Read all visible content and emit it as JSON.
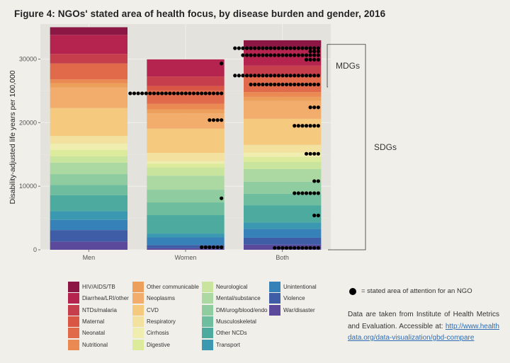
{
  "title": "Figure 4: NGOs' stated area of health focus, by disease burden and gender, 2016",
  "note": "= stated area of attention for an NGO",
  "source_text": "Data are taken from Institute of Health Metrics and Evaluation. Accessible at:",
  "source_link": "http://www.healthdata.org/data-visualization/gbd-compare",
  "chart_data": {
    "type": "bar",
    "stacked": true,
    "ylabel": "Disability-adjusted life years per 100,000",
    "xlabel": "",
    "categories": [
      "Men",
      "Women",
      "Both"
    ],
    "ylim": [
      0,
      35500
    ],
    "yticks": [
      0,
      10000,
      20000,
      30000
    ],
    "ytick_labels": [
      "0",
      "10000",
      "20000",
      "30000"
    ],
    "grid": true,
    "series": [
      {
        "name": "War/disaster",
        "color": "#5b4a9b",
        "values": [
          1300,
          250,
          800
        ]
      },
      {
        "name": "Violence",
        "color": "#3f5ca6",
        "values": [
          1800,
          500,
          1100
        ]
      },
      {
        "name": "Unintentional",
        "color": "#3681b8",
        "values": [
          1600,
          1200,
          1400
        ]
      },
      {
        "name": "Transport",
        "color": "#3a98b0",
        "values": [
          1400,
          600,
          1000
        ]
      },
      {
        "name": "Other NCDs",
        "color": "#4caa9e",
        "values": [
          2500,
          2900,
          2700
        ]
      },
      {
        "name": "Musculoskeletal",
        "color": "#6ebd9f",
        "values": [
          1600,
          2000,
          1800
        ]
      },
      {
        "name": "DM/urog/blood/endo",
        "color": "#8fcca0",
        "values": [
          1700,
          2000,
          1900
        ]
      },
      {
        "name": "Mental/substance",
        "color": "#acd8a2",
        "values": [
          1800,
          2200,
          2000
        ]
      },
      {
        "name": "Neurological",
        "color": "#c9e49d",
        "values": [
          1000,
          1300,
          1100
        ]
      },
      {
        "name": "Digestive",
        "color": "#dcea9c",
        "values": [
          1000,
          600,
          800
        ]
      },
      {
        "name": "Cirrhosis",
        "color": "#efeeae",
        "values": [
          1000,
          400,
          700
        ]
      },
      {
        "name": "Respiratory",
        "color": "#f3e1a0",
        "values": [
          1200,
          1300,
          1200
        ]
      },
      {
        "name": "CVD",
        "color": "#f5c97e",
        "values": [
          4400,
          3800,
          4100
        ]
      },
      {
        "name": "Neoplasms",
        "color": "#f2ac6c",
        "values": [
          3200,
          2400,
          2800
        ]
      },
      {
        "name": "Other communicable",
        "color": "#eda05c",
        "values": [
          700,
          600,
          650
        ]
      },
      {
        "name": "Nutritional",
        "color": "#ea8a52",
        "values": [
          600,
          900,
          750
        ]
      },
      {
        "name": "Neonatal",
        "color": "#e06a4a",
        "values": [
          2500,
          2100,
          2300
        ]
      },
      {
        "name": "Maternal",
        "color": "#d95644",
        "values": [
          0,
          700,
          350
        ]
      },
      {
        "name": "NTDs/malaria",
        "color": "#c63e4b",
        "values": [
          1500,
          1500,
          1500
        ]
      },
      {
        "name": "Diarrhea/LRI/other",
        "color": "#b4244f",
        "values": [
          3000,
          2700,
          2800
        ]
      },
      {
        "name": "HIV/AIDS/TB",
        "color": "#8c1744",
        "values": [
          1200,
          0,
          1200
        ]
      }
    ],
    "legend": {
      "placement": "bottom",
      "columns": [
        [
          "HIV/AIDS/TB",
          "Diarrhea/LRI/other",
          "NTDs/malaria",
          "Maternal",
          "Neonatal",
          "Nutritional"
        ],
        [
          "Other communicable",
          "Neoplasms",
          "CVD",
          "Respiratory",
          "Cirrhosis",
          "Digestive"
        ],
        [
          "Neurological",
          "Mental/substance",
          "DM/urog/blood/endo",
          "Musculoskeletal",
          "Other NCDs",
          "Transport"
        ],
        [
          "Unintentional",
          "Violence",
          "War/disaster"
        ]
      ]
    },
    "ngo_dots": [
      {
        "category": "Women",
        "y": 29300,
        "count": 1
      },
      {
        "category": "Women",
        "y": 24600,
        "count": 24
      },
      {
        "category": "Women",
        "y": 20400,
        "count": 4
      },
      {
        "category": "Women",
        "y": 8100,
        "count": 1
      },
      {
        "category": "Women",
        "y": 400,
        "count": 6
      },
      {
        "category": "Both",
        "y": 31700,
        "count": 22
      },
      {
        "category": "Both",
        "y": 31200,
        "count": 3
      },
      {
        "category": "Both",
        "y": 30600,
        "count": 20
      },
      {
        "category": "Both",
        "y": 29900,
        "count": 4
      },
      {
        "category": "Both",
        "y": 27400,
        "count": 22
      },
      {
        "category": "Both",
        "y": 26000,
        "count": 18
      },
      {
        "category": "Both",
        "y": 22400,
        "count": 3
      },
      {
        "category": "Both",
        "y": 19500,
        "count": 7
      },
      {
        "category": "Both",
        "y": 15100,
        "count": 4
      },
      {
        "category": "Both",
        "y": 10800,
        "count": 2
      },
      {
        "category": "Both",
        "y": 8900,
        "count": 7
      },
      {
        "category": "Both",
        "y": 5400,
        "count": 2
      },
      {
        "category": "Both",
        "y": 300,
        "count": 12
      }
    ],
    "annotations": [
      {
        "label": "MDGs",
        "y_from": 25600,
        "y_to": 32300
      },
      {
        "label": "SDGs",
        "y_from": 0,
        "y_to": 32300
      }
    ]
  }
}
